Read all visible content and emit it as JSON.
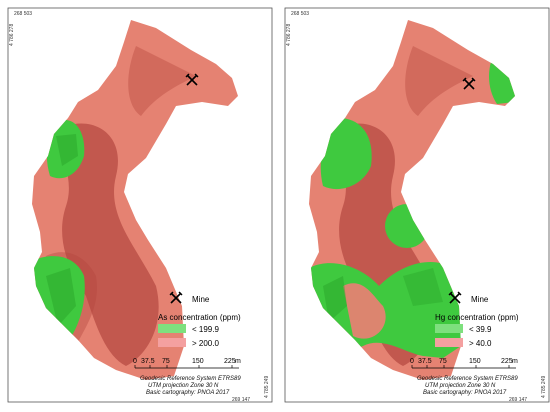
{
  "panels": [
    {
      "coords": {
        "top_left": "268 503",
        "bottom_right": "269 147",
        "left_side": "4 786 278",
        "right_side": "4 785 249"
      },
      "legend": {
        "mine_label": "Mine",
        "title": "As concentration (ppm)",
        "low_label": "< 199.9",
        "high_label": "> 200.0",
        "low_color": "#2ecc2e",
        "high_color": "#f08080"
      },
      "scale": {
        "ticks": [
          "0",
          "37.5",
          "75",
          "150",
          "225"
        ],
        "unit": "m"
      },
      "credits": {
        "line1": "Geodesic Reference System ETRS89",
        "line2": "UTM projection Zone 30 N",
        "line3": "Basic cartography: PNOA 2017"
      }
    },
    {
      "coords": {
        "top_left": "268 503",
        "bottom_right": "269 147",
        "left_side": "4 786 278",
        "right_side": "4 785 249"
      },
      "legend": {
        "mine_label": "Mine",
        "title": "Hg concentration (ppm)",
        "low_label": "< 39.9",
        "high_label": "> 40.0",
        "low_color": "#2ecc2e",
        "high_color": "#f08080"
      },
      "scale": {
        "ticks": [
          "0",
          "37.5",
          "75",
          "150",
          "225"
        ],
        "unit": "m"
      },
      "credits": {
        "line1": "Geodesic Reference System ETRS89",
        "line2": "UTM projection Zone 30 N",
        "line3": "Basic cartography: PNOA 2017"
      }
    }
  ],
  "icons": {
    "mine": "crossed-pickaxes-icon"
  }
}
